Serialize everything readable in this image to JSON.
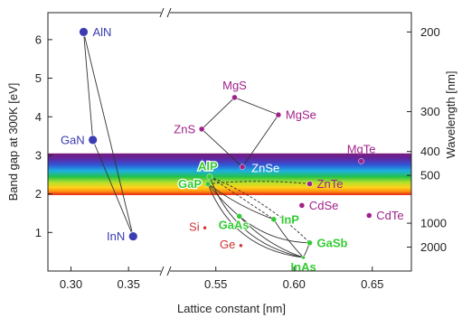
{
  "chart_data": {
    "type": "scatter",
    "xlabel": "Lattice constant [nm]",
    "ylabel": "Band gap at 300K [eV]",
    "y2label": "Wavelength [nm]",
    "x_break": true,
    "x_segments": [
      {
        "range": [
          0.28,
          0.375
        ],
        "ticks": [
          0.3,
          0.35
        ],
        "tick_labels": [
          "0.30",
          "0.35"
        ]
      },
      {
        "range": [
          0.523,
          0.675
        ],
        "ticks": [
          0.55,
          0.6,
          0.65
        ],
        "tick_labels": [
          "0.55",
          "0.60",
          "0.65"
        ]
      }
    ],
    "ylim": [
      0,
      6.7
    ],
    "yticks": [
      1,
      2,
      3,
      4,
      5,
      6
    ],
    "ytick_labels": [
      "1",
      "2",
      "3",
      "4",
      "5",
      "6"
    ],
    "y2ticks": [
      {
        "label": "200",
        "wavelength_nm": 200
      },
      {
        "label": "300",
        "wavelength_nm": 300
      },
      {
        "label": "400",
        "wavelength_nm": 400
      },
      {
        "label": "500",
        "wavelength_nm": 500
      },
      {
        "label": "1000",
        "wavelength_nm": 1000
      },
      {
        "label": "2000",
        "wavelength_nm": 2000
      }
    ],
    "visible_band": {
      "ymin": 1.97,
      "ymax": 3.05
    },
    "points": [
      {
        "name": "AlN",
        "x": 0.311,
        "y": 6.2,
        "color": "#3b3bb3",
        "size": 5,
        "label_pos": "right"
      },
      {
        "name": "GaN",
        "x": 0.319,
        "y": 3.4,
        "color": "#3b3bb3",
        "size": 5,
        "label_pos": "left"
      },
      {
        "name": "InN",
        "x": 0.354,
        "y": 0.9,
        "color": "#3b3bb3",
        "size": 5,
        "label_pos": "left"
      },
      {
        "name": "MgS",
        "x": 0.562,
        "y": 4.5,
        "color": "#a0208a",
        "size": 3,
        "label_pos": "above"
      },
      {
        "name": "MgSe",
        "x": 0.59,
        "y": 4.05,
        "color": "#a0208a",
        "size": 3,
        "label_pos": "right"
      },
      {
        "name": "ZnS",
        "x": 0.541,
        "y": 3.68,
        "color": "#a0208a",
        "size": 3,
        "label_pos": "left"
      },
      {
        "name": "ZnSe",
        "x": 0.567,
        "y": 2.7,
        "color": "#a0208a",
        "size": 3,
        "label_pos": "right-below"
      },
      {
        "name": "MgTe",
        "x": 0.643,
        "y": 2.85,
        "color": "#a0208a",
        "size": 3,
        "label_pos": "above"
      },
      {
        "name": "ZnTe",
        "x": 0.61,
        "y": 2.26,
        "color": "#a0208a",
        "size": 3,
        "label_pos": "right"
      },
      {
        "name": "CdSe",
        "x": 0.605,
        "y": 1.7,
        "color": "#a0208a",
        "size": 3,
        "label_pos": "right"
      },
      {
        "name": "CdTe",
        "x": 0.648,
        "y": 1.44,
        "color": "#a0208a",
        "size": 3,
        "label_pos": "right"
      },
      {
        "name": "AlP",
        "x": 0.546,
        "y": 2.45,
        "color": "#33cc33",
        "size": 3,
        "label_pos": "above-left"
      },
      {
        "name": "GaP",
        "x": 0.545,
        "y": 2.26,
        "color": "#33cc33",
        "size": 3,
        "label_pos": "left"
      },
      {
        "name": "GaAs",
        "x": 0.565,
        "y": 1.42,
        "color": "#33cc33",
        "size": 3,
        "label_pos": "below-left"
      },
      {
        "name": "InP",
        "x": 0.587,
        "y": 1.34,
        "color": "#33cc33",
        "size": 3,
        "label_pos": "right"
      },
      {
        "name": "GaSb",
        "x": 0.61,
        "y": 0.73,
        "color": "#33cc33",
        "size": 3,
        "label_pos": "right"
      },
      {
        "name": "InAs",
        "x": 0.606,
        "y": 0.35,
        "color": "#33cc33",
        "size": 2,
        "label_pos": "below"
      },
      {
        "name": "Si",
        "x": 0.543,
        "y": 1.12,
        "color": "#cc3333",
        "size": 2,
        "label_pos": "left"
      },
      {
        "name": "Ge",
        "x": 0.566,
        "y": 0.66,
        "color": "#cc3333",
        "size": 2,
        "label_pos": "left"
      }
    ],
    "alloy_curves": [
      {
        "from": "AlN",
        "to": "GaN",
        "bow": 0
      },
      {
        "from": "GaN",
        "to": "InN",
        "bow": 0
      },
      {
        "from": "AlN",
        "to": "InN",
        "bow": 0
      },
      {
        "from": "ZnS",
        "to": "ZnSe",
        "bow": 0
      },
      {
        "from": "ZnS",
        "to": "MgS",
        "bow": 0
      },
      {
        "from": "MgS",
        "to": "MgSe",
        "bow": 0
      },
      {
        "from": "MgSe",
        "to": "ZnSe",
        "bow": 0
      },
      {
        "from": "GaP",
        "to": "GaAs",
        "bow": 0.1
      },
      {
        "from": "GaP",
        "to": "InP",
        "bow": 0.15
      },
      {
        "from": "GaAs",
        "to": "InAs",
        "bow": 0.25
      },
      {
        "from": "GaAs",
        "to": "GaSb",
        "bow": 0.35
      },
      {
        "from": "InP",
        "to": "InAs",
        "bow": 0.1
      },
      {
        "from": "GaSb",
        "to": "InAs",
        "bow": 0.05
      },
      {
        "from": "AlP",
        "to": "InAs",
        "bow": 0.55
      },
      {
        "from": "GaP",
        "to": "InAs",
        "bow": 0.6
      }
    ],
    "dashed_curves": [
      {
        "from": "AlP",
        "to": "GaSb",
        "bow": -0.2
      },
      {
        "from": "AlP",
        "to": "InP",
        "bow": 0
      },
      {
        "from": "GaP",
        "to": "ZnTe",
        "bow": -0.1
      }
    ],
    "grid": false,
    "legend": "none"
  }
}
